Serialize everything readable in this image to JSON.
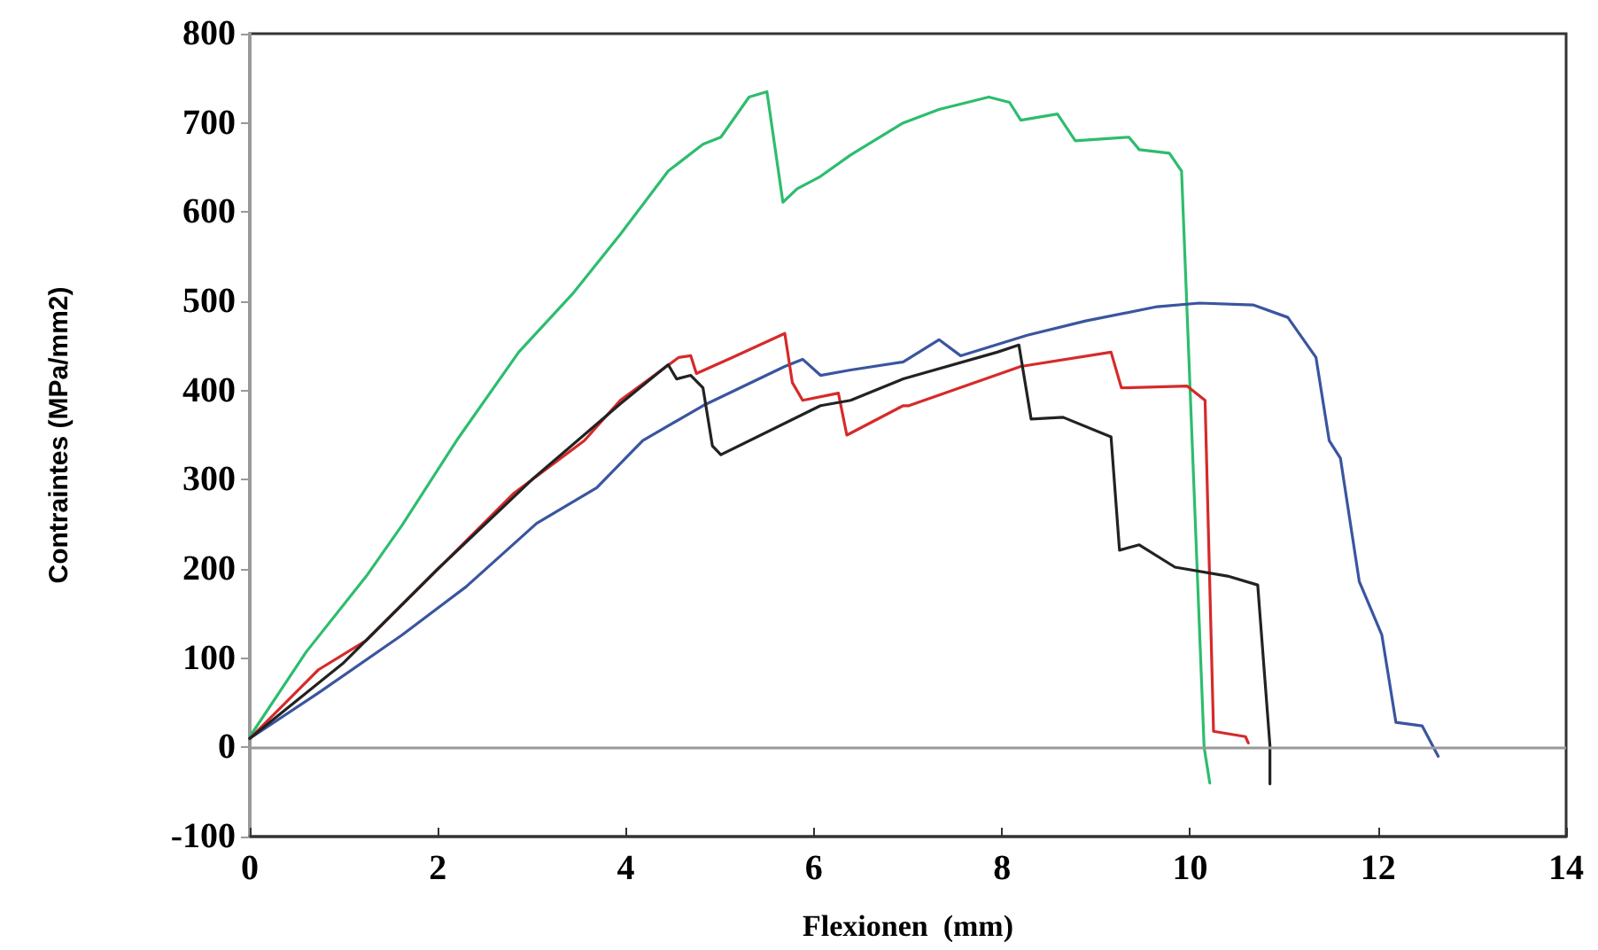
{
  "chart_data": {
    "type": "line",
    "xlabel": "Flexionen  (mm)",
    "ylabel": "Contraintes (MPa/mm2)",
    "xlim": [
      0,
      14
    ],
    "xticks": [
      0,
      2,
      4,
      6,
      8,
      10,
      12,
      14
    ],
    "ylim": [
      -100,
      800
    ],
    "yticks": [
      -100,
      0,
      100,
      200,
      300,
      400,
      500,
      600,
      700,
      800
    ],
    "grid": false,
    "marker": "none",
    "line_style": "solid",
    "ref_lines": [
      {
        "axis": "y",
        "value": 0,
        "color": "#999999"
      }
    ],
    "series": [
      {
        "color": "#2dbd6e",
        "x": [
          0,
          0.6,
          1.24,
          1.62,
          2.2,
          2.86,
          3.43,
          3.94,
          4.45,
          4.82,
          5.01,
          5.31,
          5.5,
          5.67,
          5.82,
          6.07,
          6.39,
          6.95,
          7.33,
          7.86,
          8.08,
          8.2,
          8.59,
          8.78,
          9.35,
          9.46,
          9.78,
          9.91,
          10.15,
          10.21
        ],
        "values": [
          12,
          107,
          192,
          249,
          344,
          443,
          508,
          575,
          646,
          676,
          684,
          729,
          735,
          611,
          626,
          640,
          664,
          700,
          715,
          729,
          723,
          703,
          710,
          680,
          684,
          670,
          666,
          646,
          0,
          -40
        ]
      },
      {
        "color": "#3a559f",
        "x": [
          0,
          0.73,
          1.62,
          2.3,
          3.05,
          3.69,
          4.18,
          4.82,
          5.69,
          5.88,
          6.07,
          6.39,
          6.95,
          7.33,
          7.56,
          8.27,
          8.89,
          9.65,
          10.1,
          10.67,
          11.04,
          11.34,
          11.48,
          11.6,
          11.8,
          12.04,
          12.19,
          12.47,
          12.64
        ],
        "values": [
          10,
          61,
          126,
          180,
          251,
          291,
          344,
          383,
          427,
          435,
          417,
          423,
          432,
          457,
          439,
          462,
          478,
          494,
          498,
          496,
          482,
          437,
          344,
          324,
          186,
          126,
          28,
          24,
          -10
        ]
      },
      {
        "color": "#d62a2a",
        "x": [
          0,
          0.73,
          1.24,
          2.05,
          2.81,
          3.56,
          3.94,
          4.56,
          4.69,
          4.75,
          5.13,
          5.69,
          5.77,
          5.88,
          6.26,
          6.35,
          6.95,
          7.01,
          8.2,
          9.16,
          9.27,
          9.97,
          10.16,
          10.25,
          10.59,
          10.62
        ],
        "values": [
          10,
          87,
          120,
          205,
          285,
          344,
          389,
          437,
          439,
          419,
          437,
          464,
          409,
          389,
          397,
          350,
          383,
          383,
          427,
          443,
          403,
          405,
          389,
          18,
          12,
          5
        ]
      },
      {
        "color": "#222222",
        "x": [
          0,
          1,
          2,
          3,
          3.94,
          4.45,
          4.54,
          4.69,
          4.82,
          4.92,
          5.01,
          6.07,
          6.39,
          6.95,
          7.95,
          8.18,
          8.31,
          8.65,
          9.16,
          9.25,
          9.46,
          9.84,
          10.4,
          10.72,
          10.85,
          10.85
        ],
        "values": [
          10,
          95,
          200,
          300,
          385,
          429,
          413,
          417,
          403,
          338,
          328,
          383,
          389,
          413,
          443,
          451,
          368,
          370,
          348,
          221,
          227,
          202,
          192,
          182,
          2,
          -41
        ]
      }
    ]
  }
}
